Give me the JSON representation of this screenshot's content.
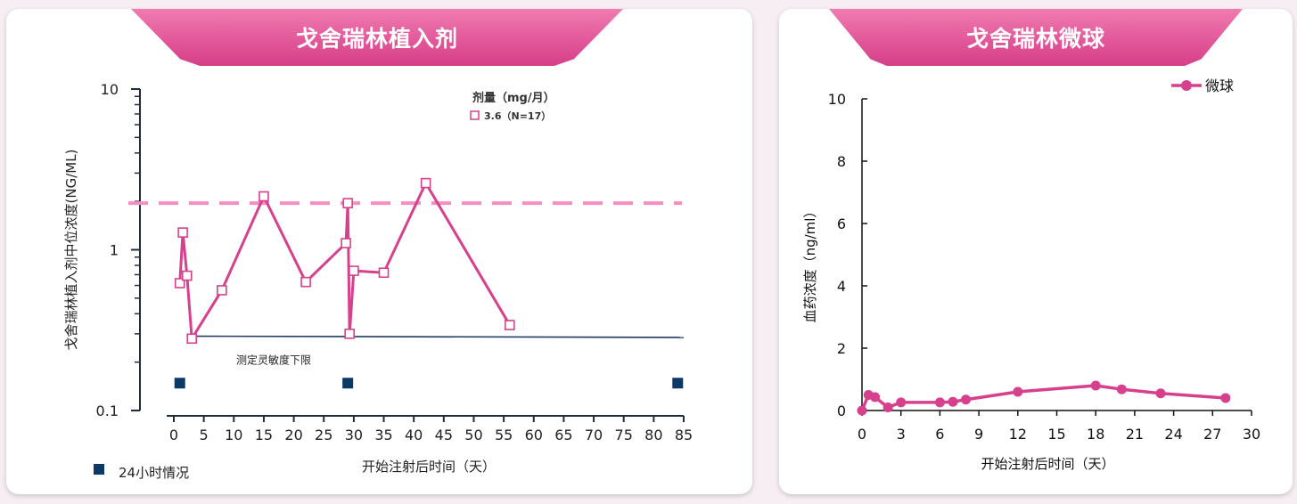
{
  "colors": {
    "series": "#d6408c",
    "threshold": "#f48fc0",
    "lloq": "#1f3a5f",
    "marker24h": "#0c3a66",
    "title_bg": "#e2589a"
  },
  "chart_data": [
    {
      "type": "line",
      "title": "戈舍瑞林植入剂",
      "xlabel": "开始注射后时间（天）",
      "ylabel": "戈舍瑞林植入剂中位浓度(NG/ML)",
      "x_ticks": [
        "0",
        "5",
        "10",
        "15",
        "20",
        "25",
        "30",
        "35",
        "40",
        "45",
        "50",
        "55",
        "60",
        "65",
        "70",
        "75",
        "80",
        "85"
      ],
      "y_ticks": [
        "10",
        "1",
        "0.1"
      ],
      "y_scale": "log",
      "xlim": [
        0,
        85
      ],
      "ylim": [
        0.1,
        10
      ],
      "legend": {
        "title": "剂量（mg/月）",
        "entry": "3.6（N=17）",
        "placement": "top-right"
      },
      "series": [
        {
          "name": "3.6（N=17）",
          "marker": "open-square",
          "x": [
            1,
            1.5,
            2.2,
            3,
            8,
            15,
            22,
            28.7,
            29,
            29.3,
            30,
            35,
            42,
            56
          ],
          "y": [
            0.62,
            1.28,
            0.69,
            0.28,
            0.56,
            2.15,
            0.63,
            1.1,
            1.95,
            0.3,
            0.74,
            0.72,
            2.6,
            0.34
          ]
        }
      ],
      "reference_line": {
        "y": 1.95,
        "style": "dashed"
      },
      "lloq_line": {
        "x": [
          3,
          85
        ],
        "y": [
          0.29,
          0.285
        ],
        "label": "测定灵敏度下限"
      },
      "markers_24h": {
        "x": [
          1,
          29,
          84
        ],
        "y": 0.148,
        "label": "24小时情况"
      },
      "grid": false
    },
    {
      "type": "line",
      "title": "戈舍瑞林微球",
      "xlabel": "开始注射后时间（天）",
      "ylabel": "血药浓度（ng/ml）",
      "x_ticks": [
        "0",
        "3",
        "6",
        "9",
        "12",
        "15",
        "18",
        "21",
        "24",
        "27",
        "30"
      ],
      "y_ticks": [
        "0",
        "2",
        "4",
        "6",
        "8",
        "10"
      ],
      "xlim": [
        0,
        30
      ],
      "ylim": [
        0,
        10
      ],
      "legend": {
        "entry": "微球",
        "placement": "top-right"
      },
      "series": [
        {
          "name": "微球",
          "marker": "filled-circle",
          "x": [
            0,
            0.5,
            1,
            2,
            3,
            6,
            7,
            8,
            12,
            18,
            20,
            23,
            28
          ],
          "y": [
            0.0,
            0.5,
            0.43,
            0.1,
            0.26,
            0.26,
            0.28,
            0.35,
            0.6,
            0.8,
            0.68,
            0.55,
            0.4
          ]
        }
      ],
      "grid": false
    }
  ]
}
